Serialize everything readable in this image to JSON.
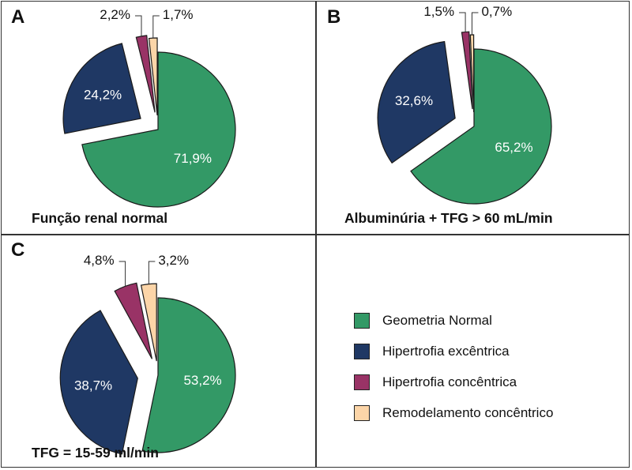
{
  "colors": {
    "normal": "#339966",
    "excentrica": "#1f3864",
    "concentrica": "#993366",
    "remodelamento": "#fcd5a8"
  },
  "legend": [
    {
      "key": "normal",
      "label": "Geometria Normal"
    },
    {
      "key": "excentrica",
      "label": "Hipertrofia excêntrica"
    },
    {
      "key": "concentrica",
      "label": "Hipertrofia concêntrica"
    },
    {
      "key": "remodelamento",
      "label": "Remodelamento concêntrico"
    }
  ],
  "chart_data": [
    {
      "type": "pie",
      "panel_letter": "A",
      "title": "Função renal normal",
      "slices": [
        {
          "key": "normal",
          "value": 71.9,
          "label": "71,9%"
        },
        {
          "key": "excentrica",
          "value": 24.2,
          "label": "24,2%"
        },
        {
          "key": "concentrica",
          "value": 2.2,
          "label": "2,2%"
        },
        {
          "key": "remodelamento",
          "value": 1.7,
          "label": "1,7%"
        }
      ]
    },
    {
      "type": "pie",
      "panel_letter": "B",
      "title": "Albuminúria + TFG > 60 mL/min",
      "slices": [
        {
          "key": "normal",
          "value": 65.2,
          "label": "65,2%"
        },
        {
          "key": "excentrica",
          "value": 32.6,
          "label": "32,6%"
        },
        {
          "key": "concentrica",
          "value": 1.5,
          "label": "1,5%"
        },
        {
          "key": "remodelamento",
          "value": 0.7,
          "label": "0,7%"
        }
      ]
    },
    {
      "type": "pie",
      "panel_letter": "C",
      "title": "TFG = 15-59 ml/min",
      "slices": [
        {
          "key": "normal",
          "value": 53.2,
          "label": "53,2%"
        },
        {
          "key": "excentrica",
          "value": 38.7,
          "label": "38,7%"
        },
        {
          "key": "concentrica",
          "value": 4.8,
          "label": "4,8%"
        },
        {
          "key": "remodelamento",
          "value": 3.2,
          "label": "3,2%"
        }
      ]
    }
  ]
}
